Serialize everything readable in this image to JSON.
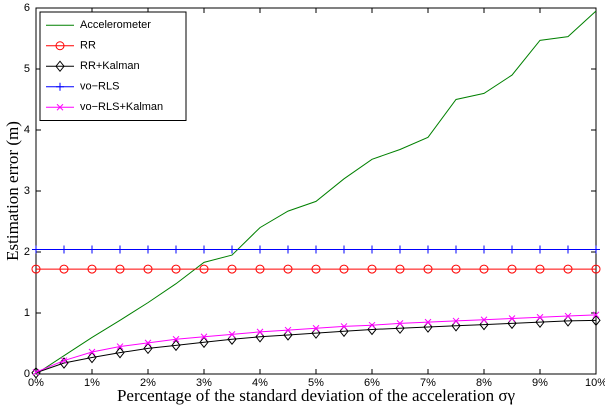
{
  "chart_data": {
    "type": "line",
    "xlabel": "Percentage of the standard deviation of the acceleration σγ",
    "ylabel": "Estimation error (m)",
    "x": [
      0,
      0.5,
      1,
      1.5,
      2,
      2.5,
      3,
      3.5,
      4,
      4.5,
      5,
      5.5,
      6,
      6.5,
      7,
      7.5,
      8,
      8.5,
      9,
      9.5,
      10
    ],
    "xlim": [
      0,
      10
    ],
    "xticks": [
      {
        "value": 0,
        "label": "0%"
      },
      {
        "value": 1,
        "label": "1%"
      },
      {
        "value": 2,
        "label": "2%"
      },
      {
        "value": 3,
        "label": "3%"
      },
      {
        "value": 4,
        "label": "4%"
      },
      {
        "value": 5,
        "label": "5%"
      },
      {
        "value": 6,
        "label": "6%"
      },
      {
        "value": 7,
        "label": "7%"
      },
      {
        "value": 8,
        "label": "8%"
      },
      {
        "value": 9,
        "label": "9%"
      },
      {
        "value": 10,
        "label": "10%"
      }
    ],
    "ylim": [
      0,
      6
    ],
    "yticks": [
      0,
      1,
      2,
      3,
      4,
      5,
      6
    ],
    "grid": false,
    "legend": "upper left",
    "series": [
      {
        "name": "Accelerometer",
        "color": "#008000",
        "marker": "none",
        "values": [
          0,
          0.3,
          0.6,
          0.88,
          1.17,
          1.48,
          1.83,
          1.95,
          2.4,
          2.67,
          2.83,
          3.2,
          3.52,
          3.68,
          3.88,
          4.5,
          4.6,
          4.9,
          5.47,
          5.53,
          5.95
        ]
      },
      {
        "name": "RR",
        "color": "#ff0000",
        "marker": "circle",
        "values": [
          1.72,
          1.72,
          1.72,
          1.72,
          1.72,
          1.72,
          1.72,
          1.72,
          1.72,
          1.72,
          1.72,
          1.72,
          1.72,
          1.72,
          1.72,
          1.72,
          1.72,
          1.72,
          1.72,
          1.72,
          1.72
        ]
      },
      {
        "name": "RR+Kalman",
        "color": "#000000",
        "marker": "diamond",
        "values": [
          0.02,
          0.18,
          0.27,
          0.35,
          0.42,
          0.47,
          0.52,
          0.57,
          0.61,
          0.64,
          0.67,
          0.7,
          0.73,
          0.75,
          0.77,
          0.79,
          0.81,
          0.83,
          0.85,
          0.87,
          0.88
        ]
      },
      {
        "name": "vo−RLS",
        "color": "#0000ff",
        "marker": "plus",
        "values": [
          2.04,
          2.04,
          2.04,
          2.04,
          2.04,
          2.04,
          2.04,
          2.04,
          2.04,
          2.04,
          2.04,
          2.04,
          2.04,
          2.04,
          2.04,
          2.04,
          2.04,
          2.04,
          2.04,
          2.04,
          2.04
        ]
      },
      {
        "name": "vo−RLS+Kalman",
        "color": "#ff00ff",
        "marker": "x",
        "values": [
          0.03,
          0.22,
          0.36,
          0.45,
          0.51,
          0.57,
          0.61,
          0.65,
          0.69,
          0.72,
          0.75,
          0.78,
          0.8,
          0.83,
          0.85,
          0.87,
          0.89,
          0.91,
          0.93,
          0.95,
          0.97
        ]
      }
    ]
  }
}
